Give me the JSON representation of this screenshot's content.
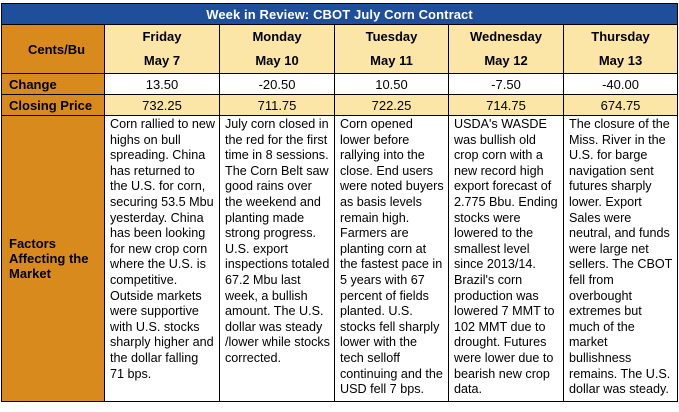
{
  "title": "Week in Review: CBOT July Corn Contract",
  "row_labels": {
    "units": "Cents/Bu",
    "change": "Change",
    "closing": "Closing Price",
    "factors": "Factors Affecting the Market"
  },
  "days": [
    {
      "name": "Friday",
      "date": "May 7",
      "change": "13.50",
      "closing": "732.25",
      "factors": "Corn rallied to new highs on bull spreading. China has returned to the U.S. for corn, securing 53.5 Mbu yesterday. China has been looking for new crop corn where the U.S. is competitive. Outside markets were supportive with U.S. stocks sharply higher and the dollar falling 71 bps."
    },
    {
      "name": "Monday",
      "date": "May 10",
      "change": "-20.50",
      "closing": "711.75",
      "factors": "July corn closed in the red for the first time in 8 sessions. The Corn Belt saw good rains over the weekend and planting made strong progress. U.S. export inspections totaled 67.2 Mbu last week, a bullish amount. The U.S. dollar was steady /lower while stocks corrected."
    },
    {
      "name": "Tuesday",
      "date": "May 11",
      "change": "10.50",
      "closing": "722.25",
      "factors": "Corn opened lower before rallying into the close. End users were noted buyers as basis levels remain high. Farmers are planting corn at the fastest pace in 5 years with 67 percent of fields planted. U.S. stocks fell sharply lower with the tech selloff continuing and the USD fell 7 bps."
    },
    {
      "name": "Wednesday",
      "date": "May 12",
      "change": "-7.50",
      "closing": "714.75",
      "factors": "USDA's WASDE was bullish old crop corn with a new record high export forecast of 2.775 Bbu. Ending stocks were lowered to the smallest level since 2013/14. Brazil's corn production was lowered 7 MMT to 102 MMT due to drought. Futures were lower due to bearish new crop data."
    },
    {
      "name": "Thursday",
      "date": "May 13",
      "change": "-40.00",
      "closing": "674.75",
      "factors": "The closure of the Miss. River in the U.S. for barge navigation sent futures sharply lower. Export Sales were neutral, and funds were large net sellers. The CBOT fell from overbought extremes but much of the market bullishness remains. The U.S. dollar was steady."
    }
  ],
  "colors": {
    "title_bg": "#1f4e9a",
    "title_text": "#ffffff",
    "label_bg": "#d88a1c",
    "header_bg": "#fbe6a8",
    "closing_bg": "#fbe6a8"
  }
}
